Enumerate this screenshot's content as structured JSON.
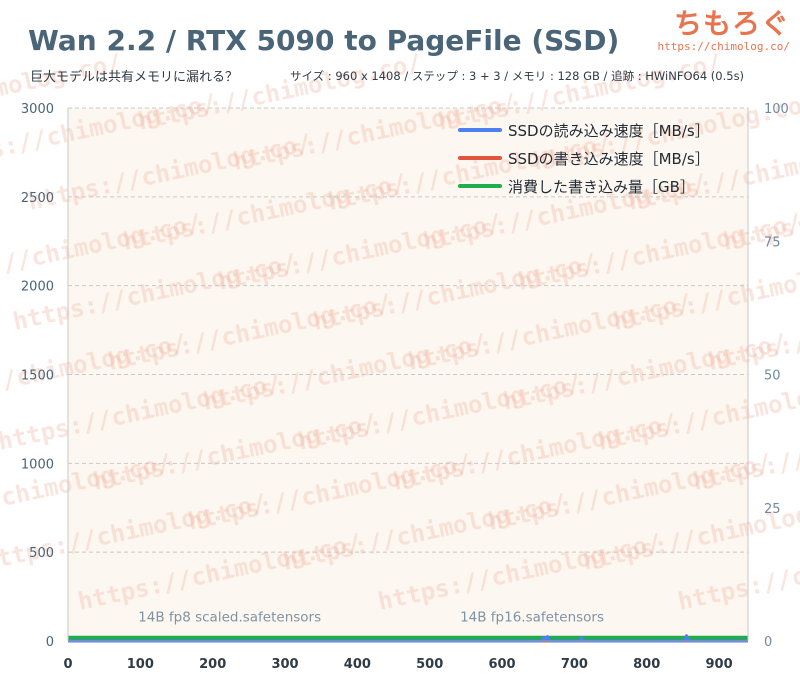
{
  "header": {
    "title": "Wan 2.2 / RTX 5090 to PageFile (SSD)",
    "subtitle": "巨大モデルは共有メモリに漏れる？",
    "meta": "サイズ : 960 x 1408 / ステップ : 3 + 3 / メモリ : 128 GB / 追跡 : HWiNFO64 (0.5s)"
  },
  "brand": {
    "name": "ちもろぐ",
    "url": "https://chimolog.co/"
  },
  "watermark_text": "https://chimolog.co/",
  "chart_data": {
    "type": "line",
    "xlim": [
      0,
      940
    ],
    "x_ticks": [
      0,
      100,
      200,
      300,
      400,
      500,
      600,
      700,
      800,
      900
    ],
    "y_left_lim": [
      0,
      3000
    ],
    "y_left_ticks": [
      0,
      500,
      1000,
      1500,
      2000,
      2500,
      3000
    ],
    "y_right_lim": [
      0,
      100
    ],
    "y_right_ticks": [
      0,
      25,
      50,
      75,
      100
    ],
    "grid": "horizontal dashed",
    "legend_position": "top-right",
    "series": [
      {
        "name": "SSDの読み込み速度［MB/s］",
        "color": "#4f7ff0",
        "axis": "left",
        "x": [
          0,
          655,
          658,
          660,
          663,
          665,
          708,
          710,
          712,
          853,
          855,
          857,
          940
        ],
        "y": [
          0,
          0,
          20,
          5,
          25,
          0,
          0,
          18,
          0,
          0,
          30,
          0,
          0
        ]
      },
      {
        "name": "SSDの書き込み速度［MB/s］",
        "color": "#e0553b",
        "axis": "left",
        "x": [
          0,
          940
        ],
        "y": [
          0,
          0
        ]
      },
      {
        "name": "消費した書き込み量［GB］",
        "color": "#1fae4a",
        "axis": "right",
        "x": [
          0,
          940
        ],
        "y": [
          0.6,
          0.6
        ]
      }
    ],
    "annotations": [
      {
        "text": "14B fp8 scaled.safetensors",
        "x": 97,
        "y": 110
      },
      {
        "text": "14B fp16.safetensors",
        "x": 542,
        "y": 110
      }
    ]
  }
}
